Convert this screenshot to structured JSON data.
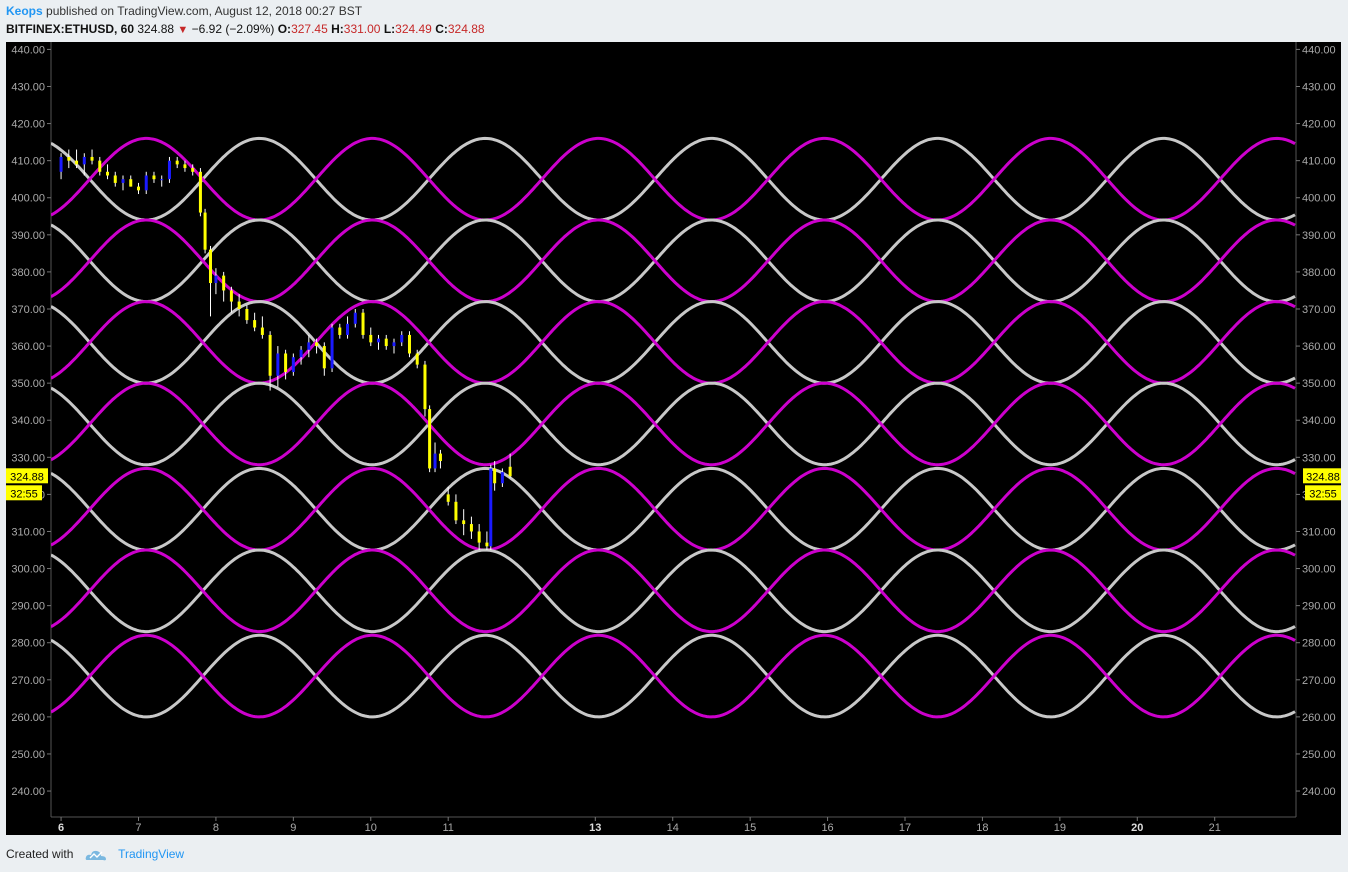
{
  "header": {
    "author": "Keops",
    "published_text": "published on TradingView.com, August 12, 2018 00:27 BST"
  },
  "symbol_line": {
    "symbol": "BITFINEX:ETHUSD, 60",
    "last": "324.88",
    "change": "−6.92 (−2.09%)",
    "o_label": "O:",
    "o_value": "327.45",
    "h_label": "H:",
    "h_value": "331.00",
    "l_label": "L:",
    "l_value": "324.49",
    "c_label": "C:",
    "c_value": "324.88"
  },
  "price_badge": {
    "price": "324.88",
    "countdown": "32:55"
  },
  "footer": {
    "created_with": "Created with",
    "brand": "TradingView"
  },
  "colors": {
    "background": "#000000",
    "magenta_wave": "#cc00cc",
    "grey_wave": "#c8c8c8",
    "candle_up": "#1a1aff",
    "candle_down": "#ffff00",
    "badge": "#ffff00",
    "down_arrow": "#c62828"
  },
  "chart_data": {
    "type": "line",
    "title": "",
    "ylabel": "",
    "xlabel": "",
    "ylim": [
      233,
      442
    ],
    "xlim": [
      5.87,
      21.95
    ],
    "y_ticks": [
      "440.00",
      "430.00",
      "420.00",
      "410.00",
      "400.00",
      "390.00",
      "380.00",
      "370.00",
      "360.00",
      "350.00",
      "340.00",
      "330.00",
      "320.00",
      "310.00",
      "300.00",
      "290.00",
      "280.00",
      "270.00",
      "260.00",
      "250.00",
      "240.00"
    ],
    "x_ticks": [
      {
        "label": "6",
        "x": 6.0,
        "bold": true
      },
      {
        "label": "7",
        "x": 7.0
      },
      {
        "label": "8",
        "x": 8.0
      },
      {
        "label": "9",
        "x": 9.0
      },
      {
        "label": "10",
        "x": 10.0
      },
      {
        "label": "11",
        "x": 11.0
      },
      {
        "label": "13",
        "x": 12.9,
        "bold": true
      },
      {
        "label": "14",
        "x": 13.9
      },
      {
        "label": "15",
        "x": 14.9
      },
      {
        "label": "16",
        "x": 15.9
      },
      {
        "label": "17",
        "x": 16.9
      },
      {
        "label": "18",
        "x": 17.9
      },
      {
        "label": "19",
        "x": 18.9
      },
      {
        "label": "20",
        "x": 19.9,
        "bold": true
      },
      {
        "label": "21",
        "x": 20.9
      }
    ],
    "waves": {
      "period_days": 2.92,
      "amplitude": 11,
      "magenta_peak_x": 7.1,
      "grey_peak_x": 8.56,
      "centers": [
        405,
        383,
        361,
        339,
        316,
        294,
        271
      ]
    },
    "candles": [
      {
        "x": 6.0,
        "o": 407,
        "h": 412,
        "l": 405,
        "c": 411
      },
      {
        "x": 6.1,
        "o": 411,
        "h": 413,
        "l": 408,
        "c": 410
      },
      {
        "x": 6.2,
        "o": 410,
        "h": 413,
        "l": 408,
        "c": 409
      },
      {
        "x": 6.3,
        "o": 409,
        "h": 412,
        "l": 406,
        "c": 411
      },
      {
        "x": 6.4,
        "o": 411,
        "h": 413,
        "l": 409,
        "c": 410
      },
      {
        "x": 6.5,
        "o": 410,
        "h": 411,
        "l": 406,
        "c": 407
      },
      {
        "x": 6.6,
        "o": 407,
        "h": 409,
        "l": 405,
        "c": 406
      },
      {
        "x": 6.7,
        "o": 406,
        "h": 407,
        "l": 403,
        "c": 404
      },
      {
        "x": 6.8,
        "o": 404,
        "h": 406,
        "l": 402,
        "c": 405
      },
      {
        "x": 6.9,
        "o": 405,
        "h": 406,
        "l": 403,
        "c": 403
      },
      {
        "x": 7.0,
        "o": 403,
        "h": 404,
        "l": 401,
        "c": 402
      },
      {
        "x": 7.1,
        "o": 402,
        "h": 407,
        "l": 401,
        "c": 406
      },
      {
        "x": 7.2,
        "o": 406,
        "h": 407,
        "l": 404,
        "c": 405
      },
      {
        "x": 7.3,
        "o": 405,
        "h": 406,
        "l": 403,
        "c": 405
      },
      {
        "x": 7.4,
        "o": 405,
        "h": 411,
        "l": 404,
        "c": 410
      },
      {
        "x": 7.5,
        "o": 410,
        "h": 411,
        "l": 408,
        "c": 409
      },
      {
        "x": 7.6,
        "o": 409,
        "h": 410,
        "l": 407,
        "c": 408
      },
      {
        "x": 7.7,
        "o": 408,
        "h": 409,
        "l": 406,
        "c": 407
      },
      {
        "x": 7.8,
        "o": 407,
        "h": 408,
        "l": 395,
        "c": 396
      },
      {
        "x": 7.86,
        "o": 396,
        "h": 397,
        "l": 385,
        "c": 386
      },
      {
        "x": 7.93,
        "o": 386,
        "h": 387,
        "l": 368,
        "c": 377
      },
      {
        "x": 8.0,
        "o": 377,
        "h": 381,
        "l": 374,
        "c": 379
      },
      {
        "x": 8.1,
        "o": 379,
        "h": 380,
        "l": 372,
        "c": 375
      },
      {
        "x": 8.2,
        "o": 375,
        "h": 376,
        "l": 369,
        "c": 372
      },
      {
        "x": 8.3,
        "o": 372,
        "h": 374,
        "l": 368,
        "c": 370
      },
      {
        "x": 8.4,
        "o": 370,
        "h": 371,
        "l": 366,
        "c": 367
      },
      {
        "x": 8.5,
        "o": 367,
        "h": 369,
        "l": 364,
        "c": 365
      },
      {
        "x": 8.6,
        "o": 365,
        "h": 368,
        "l": 362,
        "c": 363
      },
      {
        "x": 8.7,
        "o": 363,
        "h": 364,
        "l": 348,
        "c": 352
      },
      {
        "x": 8.8,
        "o": 352,
        "h": 360,
        "l": 349,
        "c": 358
      },
      {
        "x": 8.9,
        "o": 358,
        "h": 359,
        "l": 351,
        "c": 353
      },
      {
        "x": 9.0,
        "o": 353,
        "h": 358,
        "l": 352,
        "c": 357
      },
      {
        "x": 9.1,
        "o": 357,
        "h": 360,
        "l": 355,
        "c": 359
      },
      {
        "x": 9.2,
        "o": 359,
        "h": 363,
        "l": 357,
        "c": 361
      },
      {
        "x": 9.3,
        "o": 361,
        "h": 362,
        "l": 358,
        "c": 360
      },
      {
        "x": 9.4,
        "o": 360,
        "h": 361,
        "l": 352,
        "c": 354
      },
      {
        "x": 9.5,
        "o": 354,
        "h": 366,
        "l": 353,
        "c": 365
      },
      {
        "x": 9.6,
        "o": 365,
        "h": 366,
        "l": 362,
        "c": 363
      },
      {
        "x": 9.7,
        "o": 363,
        "h": 368,
        "l": 362,
        "c": 366
      },
      {
        "x": 9.8,
        "o": 366,
        "h": 370,
        "l": 365,
        "c": 369
      },
      {
        "x": 9.9,
        "o": 369,
        "h": 370,
        "l": 362,
        "c": 363
      },
      {
        "x": 10.0,
        "o": 363,
        "h": 365,
        "l": 360,
        "c": 361
      },
      {
        "x": 10.1,
        "o": 361,
        "h": 363,
        "l": 359,
        "c": 362
      },
      {
        "x": 10.2,
        "o": 362,
        "h": 363,
        "l": 359,
        "c": 360
      },
      {
        "x": 10.3,
        "o": 360,
        "h": 362,
        "l": 358,
        "c": 361
      },
      {
        "x": 10.4,
        "o": 361,
        "h": 364,
        "l": 360,
        "c": 363
      },
      {
        "x": 10.5,
        "o": 363,
        "h": 364,
        "l": 357,
        "c": 358
      },
      {
        "x": 10.6,
        "o": 358,
        "h": 359,
        "l": 354,
        "c": 355
      },
      {
        "x": 10.7,
        "o": 355,
        "h": 356,
        "l": 341,
        "c": 343
      },
      {
        "x": 10.76,
        "o": 343,
        "h": 344,
        "l": 326,
        "c": 327
      },
      {
        "x": 10.83,
        "o": 327,
        "h": 334,
        "l": 326,
        "c": 331
      },
      {
        "x": 10.9,
        "o": 331,
        "h": 332,
        "l": 327,
        "c": 329
      },
      {
        "x": 11.0,
        "o": 320,
        "h": 322,
        "l": 317,
        "c": 318
      },
      {
        "x": 11.1,
        "o": 318,
        "h": 320,
        "l": 312,
        "c": 313
      },
      {
        "x": 11.2,
        "o": 313,
        "h": 316,
        "l": 309,
        "c": 312
      },
      {
        "x": 11.3,
        "o": 312,
        "h": 314,
        "l": 308,
        "c": 310
      },
      {
        "x": 11.4,
        "o": 310,
        "h": 312,
        "l": 305,
        "c": 307
      },
      {
        "x": 11.5,
        "o": 307,
        "h": 310,
        "l": 305,
        "c": 306
      },
      {
        "x": 11.55,
        "o": 306,
        "h": 328,
        "l": 305,
        "c": 327
      },
      {
        "x": 11.6,
        "o": 327,
        "h": 329,
        "l": 321,
        "c": 323
      },
      {
        "x": 11.7,
        "o": 323,
        "h": 327,
        "l": 322,
        "c": 326
      },
      {
        "x": 11.8,
        "o": 327.45,
        "h": 331,
        "l": 324.49,
        "c": 324.88
      }
    ]
  }
}
